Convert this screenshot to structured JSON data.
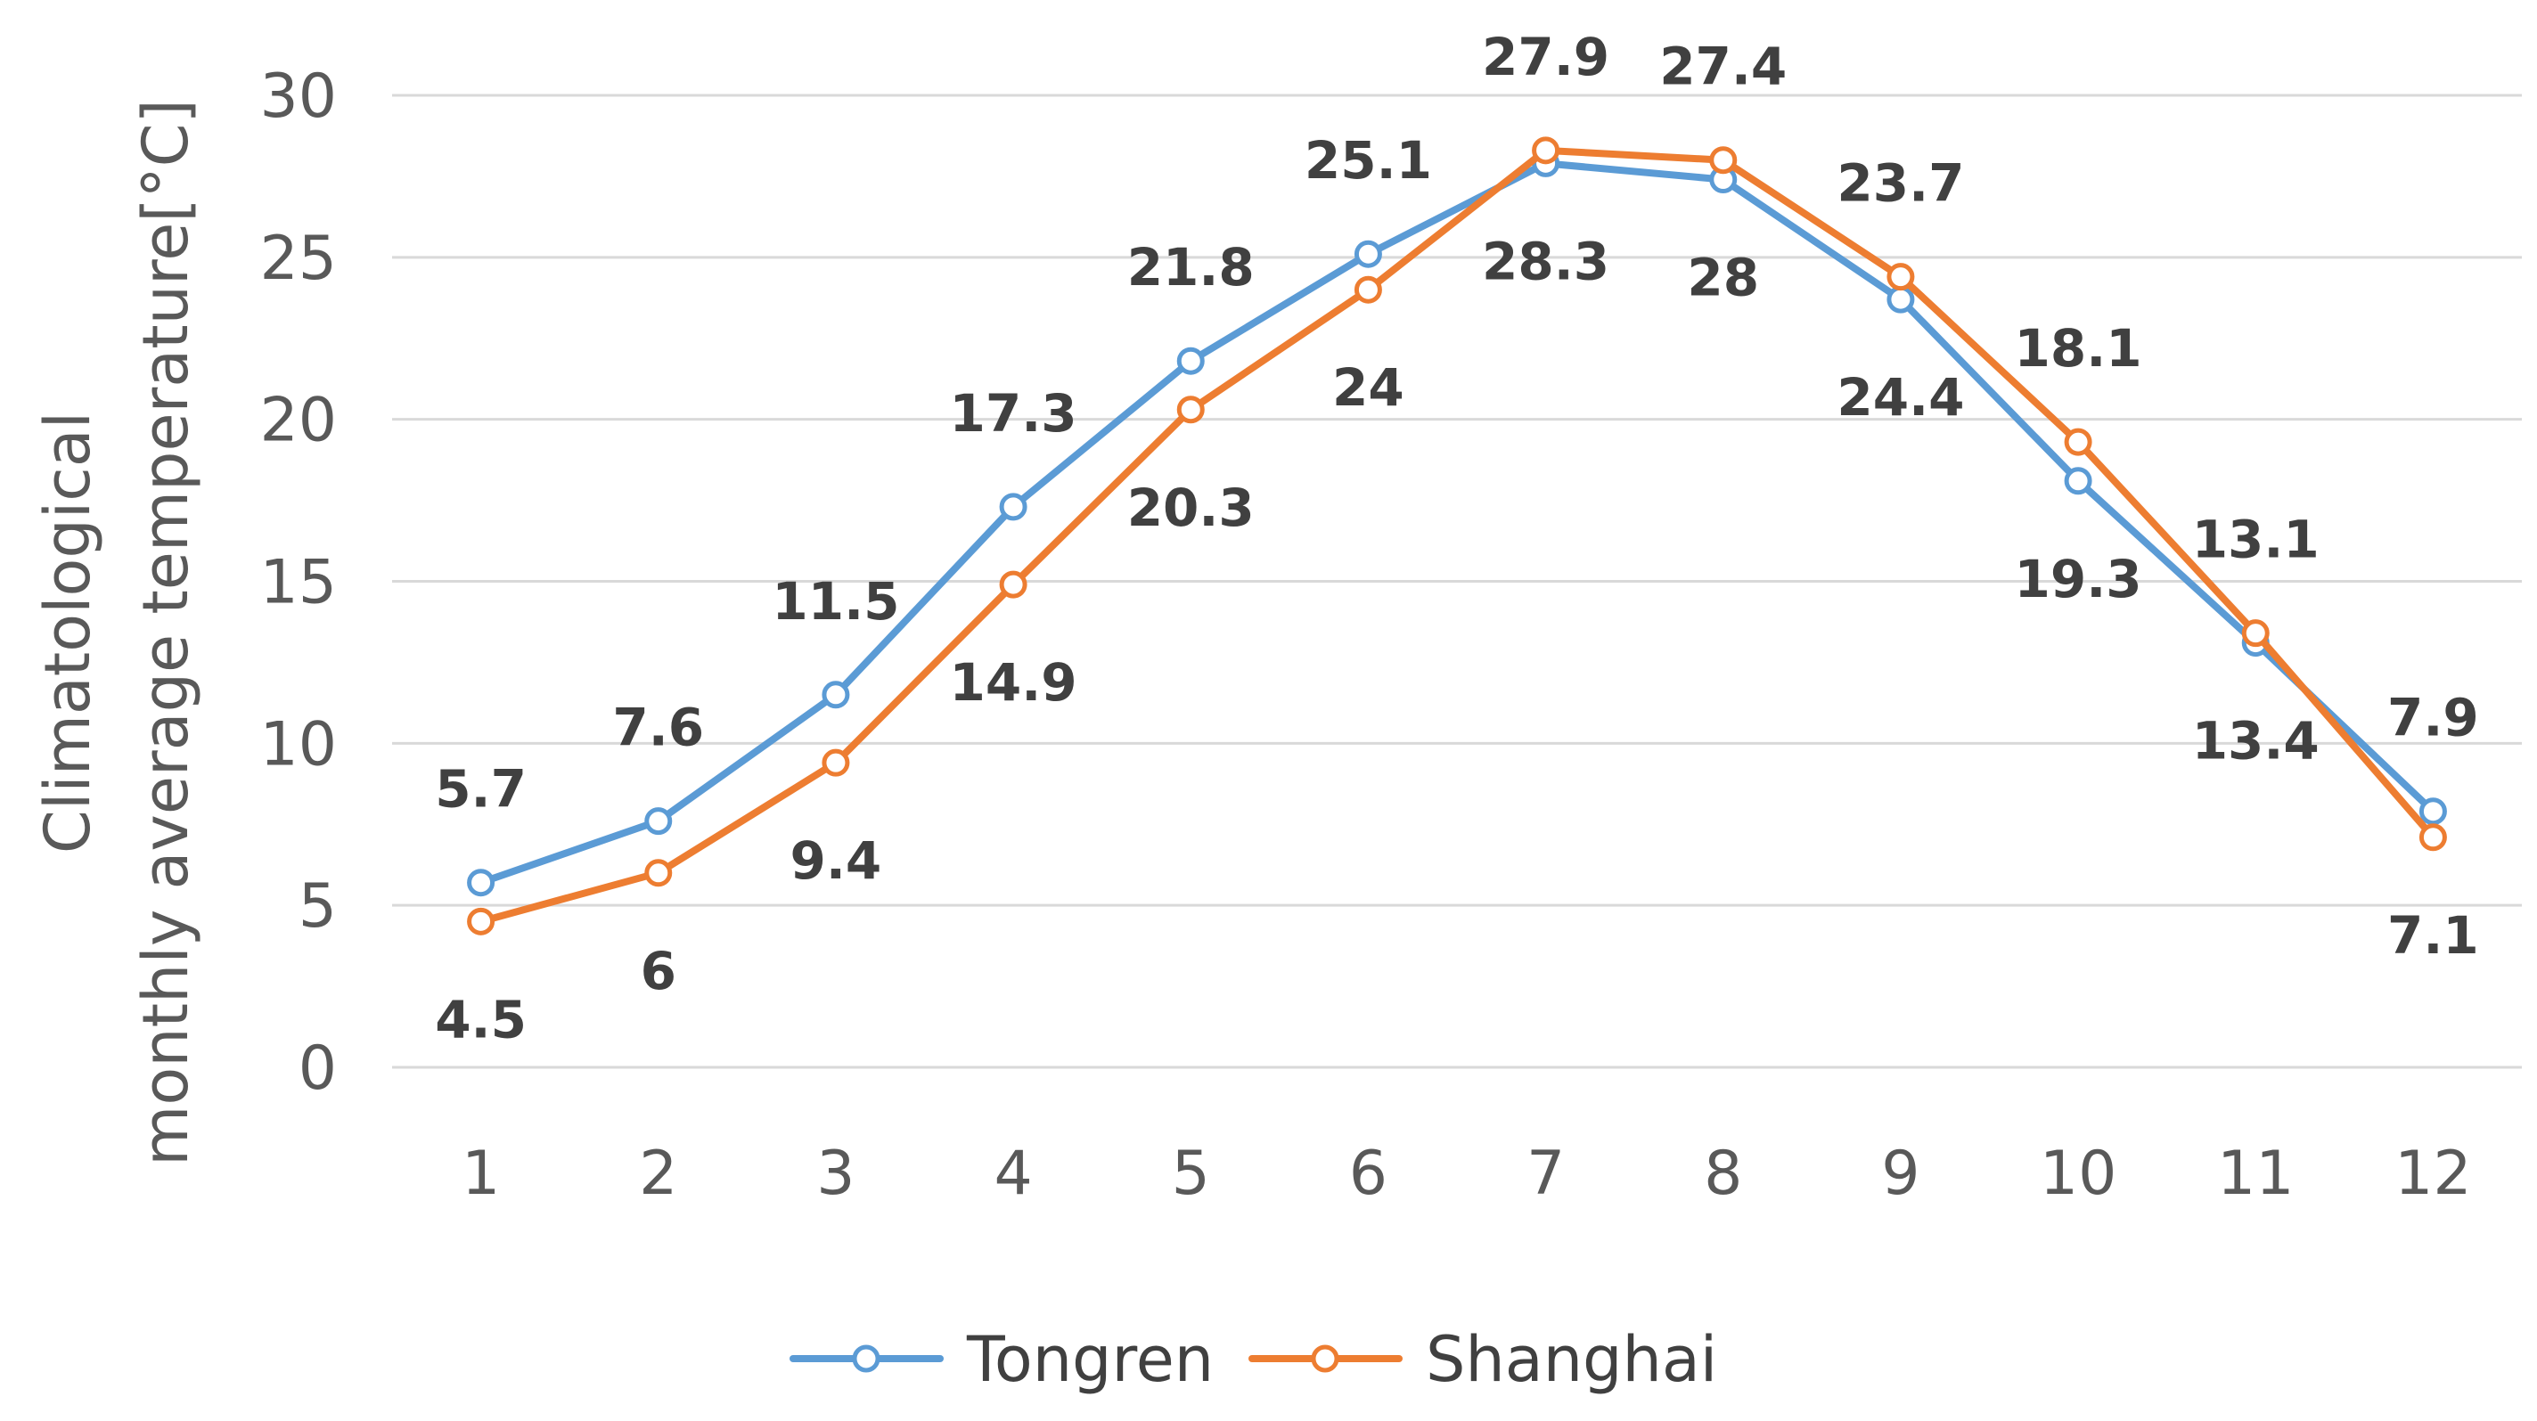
{
  "chart_data": {
    "type": "line",
    "title": "",
    "xlabel": "",
    "ylabel": "Climatological monthly average temperature[°C]",
    "ylabel_lines": [
      "Climatological",
      "monthly average temperature[°C]"
    ],
    "categories": [
      "1",
      "2",
      "3",
      "4",
      "5",
      "6",
      "7",
      "8",
      "9",
      "10",
      "11",
      "12"
    ],
    "y_ticks": [
      "0",
      "5",
      "10",
      "15",
      "20",
      "25",
      "30"
    ],
    "ylim": [
      0,
      30
    ],
    "grid": true,
    "legend_position": "bottom",
    "series": [
      {
        "name": "Tongren",
        "color": "#5B9BD5",
        "values": [
          5.7,
          7.6,
          11.5,
          17.3,
          21.8,
          25.1,
          27.9,
          27.4,
          23.7,
          18.1,
          13.1,
          7.9
        ],
        "labels": [
          "5.7",
          "7.6",
          "11.5",
          "17.3",
          "21.8",
          "25.1",
          "27.9",
          "27.4",
          "23.7",
          "18.1",
          "13.1",
          "7.9"
        ]
      },
      {
        "name": "Shanghai",
        "color": "#ED7D31",
        "values": [
          4.5,
          6,
          9.4,
          14.9,
          20.3,
          24,
          28.3,
          28,
          24.4,
          19.3,
          13.4,
          7.1
        ],
        "labels": [
          "4.5",
          "6",
          "9.4",
          "14.9",
          "20.3",
          "24",
          "28.3",
          "28",
          "24.4",
          "19.3",
          "13.4",
          "7.1"
        ]
      }
    ]
  }
}
